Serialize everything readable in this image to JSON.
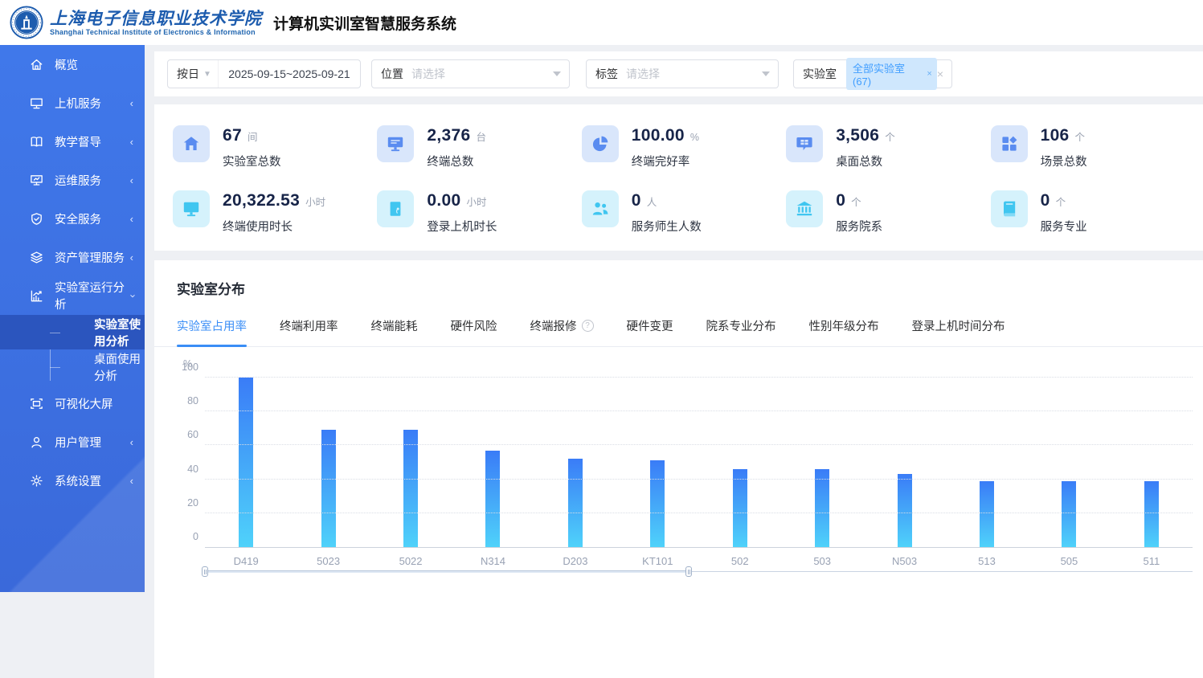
{
  "header": {
    "logo_title_cn": "上海电子信息职业技术学院",
    "logo_subtitle_en": "Shanghai Technical Institute of Electronics & Information",
    "app_title": "计算机实训室智慧服务系统"
  },
  "sidebar": {
    "items": [
      {
        "label": "概览",
        "icon": "home-icon",
        "arrow": null
      },
      {
        "label": "上机服务",
        "icon": "monitor-icon",
        "arrow": "collapsed"
      },
      {
        "label": "教学督导",
        "icon": "book-icon",
        "arrow": "collapsed"
      },
      {
        "label": "运维服务",
        "icon": "ops-icon",
        "arrow": "collapsed"
      },
      {
        "label": "安全服务",
        "icon": "shield-icon",
        "arrow": "collapsed"
      },
      {
        "label": "资产管理服务",
        "icon": "layers-icon",
        "arrow": "collapsed"
      },
      {
        "label": "实验室运行分析",
        "icon": "analytics-icon",
        "arrow": "expanded",
        "children": [
          {
            "label": "实验室使用分析",
            "active": true
          },
          {
            "label": "桌面使用分析",
            "active": false
          }
        ]
      },
      {
        "label": "可视化大屏",
        "icon": "bigscreen-icon",
        "arrow": null
      },
      {
        "label": "用户管理",
        "icon": "user-icon",
        "arrow": "collapsed"
      },
      {
        "label": "系统设置",
        "icon": "gear-icon",
        "arrow": "collapsed"
      }
    ]
  },
  "filters": {
    "date_mode": "按日",
    "date_range": "2025-09-15~2025-09-21",
    "location_label": "位置",
    "location_placeholder": "请选择",
    "tag_label": "标签",
    "tag_placeholder": "请选择",
    "lab_label": "实验室",
    "lab_selected_tag": "全部实验室 (67)",
    "tag_remove_glyph": "×",
    "clear_glyph": "×"
  },
  "stats": [
    {
      "icon": "home-filled-icon",
      "value": "67",
      "unit": "间",
      "label": "实验室总数",
      "theme": "blue"
    },
    {
      "icon": "terminal-icon",
      "value": "2,376",
      "unit": "台",
      "label": "终端总数",
      "theme": "blue"
    },
    {
      "icon": "pie-icon",
      "value": "100.00",
      "unit": "%",
      "label": "终端完好率",
      "theme": "blue"
    },
    {
      "icon": "desktop-icon",
      "value": "3,506",
      "unit": "个",
      "label": "桌面总数",
      "theme": "blue"
    },
    {
      "icon": "scene-grid-icon",
      "value": "106",
      "unit": "个",
      "label": "场景总数",
      "theme": "blue"
    },
    {
      "icon": "screen-time-icon",
      "value": "20,322.53",
      "unit": "小时",
      "label": "终端使用时长",
      "theme": "cyan"
    },
    {
      "icon": "login-door-icon",
      "value": "0.00",
      "unit": "小时",
      "label": "登录上机时长",
      "theme": "cyan"
    },
    {
      "icon": "people-icon",
      "value": "0",
      "unit": "人",
      "label": "服务师生人数",
      "theme": "cyan"
    },
    {
      "icon": "institution-icon",
      "value": "0",
      "unit": "个",
      "label": "服务院系",
      "theme": "cyan"
    },
    {
      "icon": "major-book-icon",
      "value": "0",
      "unit": "个",
      "label": "服务专业",
      "theme": "cyan"
    }
  ],
  "section": {
    "title": "实验室分布",
    "tabs": [
      {
        "label": "实验室占用率",
        "active": true
      },
      {
        "label": "终端利用率"
      },
      {
        "label": "终端能耗"
      },
      {
        "label": "硬件风险"
      },
      {
        "label": "终端报修",
        "help": true
      },
      {
        "label": "硬件变更"
      },
      {
        "label": "院系专业分布"
      },
      {
        "label": "性别年级分布"
      },
      {
        "label": "登录上机时间分布"
      }
    ]
  },
  "chart_data": {
    "type": "bar",
    "title": "实验室占用率",
    "categories": [
      "D419",
      "5023",
      "5022",
      "N314",
      "D203",
      "KT101",
      "502",
      "503",
      "N503",
      "513",
      "505",
      "511"
    ],
    "values": [
      100,
      69,
      69,
      57,
      52,
      51,
      46,
      46,
      43,
      39,
      39,
      39
    ],
    "ylabel": "%",
    "ylim": [
      0,
      100
    ],
    "yticks": [
      0,
      20,
      40,
      60,
      80,
      100
    ],
    "grid": "dotted-horizontal",
    "legend": "none",
    "zoom_range_pct": [
      0,
      49
    ]
  },
  "colors": {
    "accent": "#409eff",
    "sidebar": "#3d70e2",
    "sidebar_active": "#2b55be",
    "bar_gradient_top": "#3a7cf7",
    "bar_gradient_bottom": "#4fd2fa",
    "stat_number": "#172448"
  }
}
